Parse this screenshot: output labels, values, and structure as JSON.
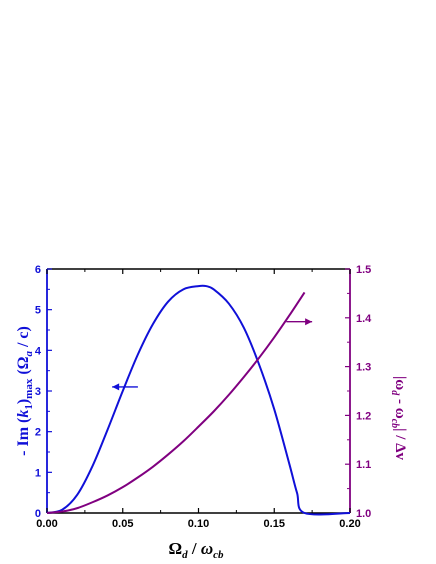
{
  "chart_data": {
    "type": "line",
    "xlabel_main": "Ω",
    "xlabel_main_sub": "d",
    "xlabel_sep": " / ",
    "xlabel_den": "ω",
    "xlabel_den_sub": "cb",
    "ylabel_left": {
      "prefix": "- Im (",
      "k": "k",
      "k_sub": "1",
      "close": ")",
      "max_sub": "max",
      "units_open": "  (Ω",
      "units_sub": "a",
      "units_close": " / c)"
    },
    "ylabel_right": {
      "text1": "|ω",
      "sub1": "d",
      "text2": " - ω",
      "sub2": "cb",
      "text3": "| / Δv"
    },
    "xlim": [
      0.0,
      0.2
    ],
    "xticks": [
      "0.00",
      "0.05",
      "0.10",
      "0.15",
      "0.20"
    ],
    "ylim_left": [
      0,
      6
    ],
    "yticks_left": [
      "0",
      "1",
      "2",
      "3",
      "4",
      "5",
      "6"
    ],
    "ylim_right": [
      1.0,
      1.5
    ],
    "yticks_right": [
      "1.0",
      "1.1",
      "1.2",
      "1.3",
      "1.4",
      "1.5"
    ],
    "colors": {
      "left": "#1010d8",
      "right": "#800080",
      "axis": "#000000"
    },
    "series": [
      {
        "axis": "left",
        "color": "#1010d8",
        "x": [
          0.0,
          0.01,
          0.02,
          0.03,
          0.04,
          0.05,
          0.06,
          0.07,
          0.08,
          0.09,
          0.1,
          0.105,
          0.11,
          0.12,
          0.13,
          0.14,
          0.15,
          0.16,
          0.165,
          0.17,
          0.2
        ],
        "y": [
          0.0,
          0.08,
          0.45,
          1.15,
          2.05,
          3.0,
          3.9,
          4.65,
          5.2,
          5.5,
          5.58,
          5.58,
          5.5,
          5.15,
          4.55,
          3.65,
          2.55,
          1.2,
          0.5,
          0.0,
          0.0
        ]
      },
      {
        "axis": "right",
        "color": "#800080",
        "x": [
          0.0,
          0.01,
          0.02,
          0.03,
          0.04,
          0.05,
          0.06,
          0.07,
          0.08,
          0.09,
          0.1,
          0.11,
          0.12,
          0.13,
          0.14,
          0.15,
          0.16,
          0.17
        ],
        "y": [
          1.0,
          1.003,
          1.01,
          1.022,
          1.036,
          1.053,
          1.073,
          1.095,
          1.12,
          1.147,
          1.177,
          1.208,
          1.242,
          1.279,
          1.318,
          1.36,
          1.405,
          1.452
        ]
      }
    ],
    "arrows": [
      {
        "axis": "left",
        "direction": "left",
        "x_from": 0.06,
        "x_to": 0.043,
        "y": 3.1
      },
      {
        "axis": "right",
        "direction": "right",
        "x_from": 0.158,
        "x_to": 0.175,
        "y": 1.392
      }
    ]
  }
}
